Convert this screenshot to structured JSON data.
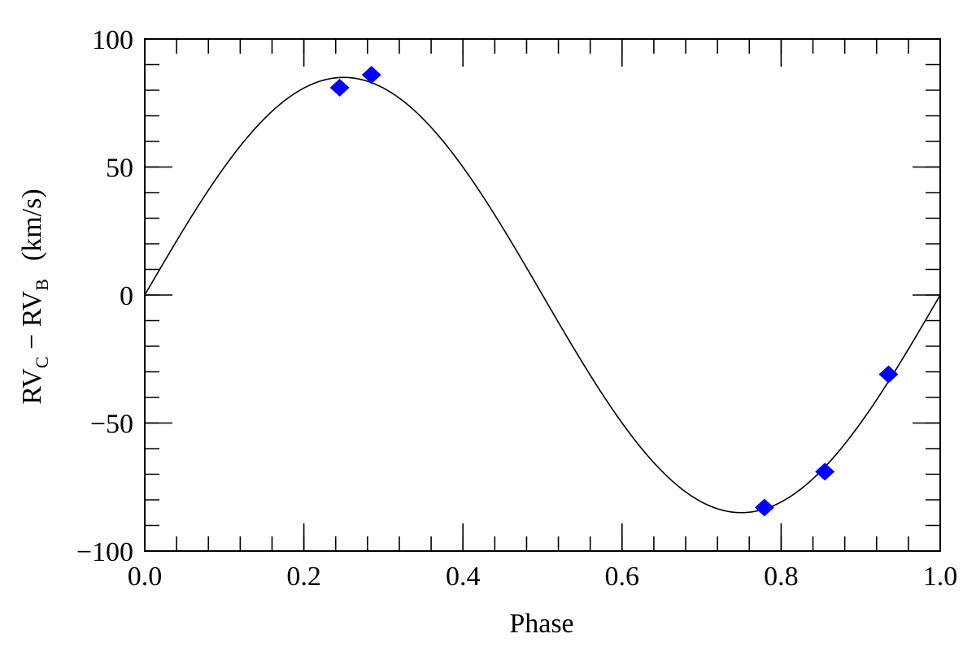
{
  "chart_data": {
    "type": "scatter",
    "title": "",
    "xlabel": "Phase",
    "ylabel": {
      "main_1": "RV",
      "sub_1": "C",
      "minus": " − ",
      "main_2": "RV",
      "sub_2": "B",
      "units": "(km/s)"
    },
    "xlim": [
      0.0,
      1.0
    ],
    "ylim": [
      -100,
      100
    ],
    "x_ticks": [
      0.0,
      0.2,
      0.4,
      0.6,
      0.8,
      1.0
    ],
    "x_tick_labels": [
      "0.0",
      "0.2",
      "0.4",
      "0.6",
      "0.8",
      "1.0"
    ],
    "y_ticks": [
      100,
      50,
      0,
      -50,
      -100
    ],
    "y_tick_labels": [
      "100",
      "50",
      "0",
      "−50",
      "−100"
    ],
    "x_minor_step": 0.04,
    "y_minor_step": 10,
    "grid": false,
    "series": [
      {
        "kind": "points",
        "marker": "diamond",
        "color": "#0000ff",
        "points": [
          {
            "x": 0.245,
            "y": 81
          },
          {
            "x": 0.285,
            "y": 86
          },
          {
            "x": 0.779,
            "y": -83
          },
          {
            "x": 0.855,
            "y": -69
          },
          {
            "x": 0.935,
            "y": -31
          }
        ]
      },
      {
        "kind": "curve",
        "color": "#000000",
        "function": "sine",
        "amplitude": 85,
        "period": 1.0,
        "phase_offset": 0.0
      }
    ]
  }
}
